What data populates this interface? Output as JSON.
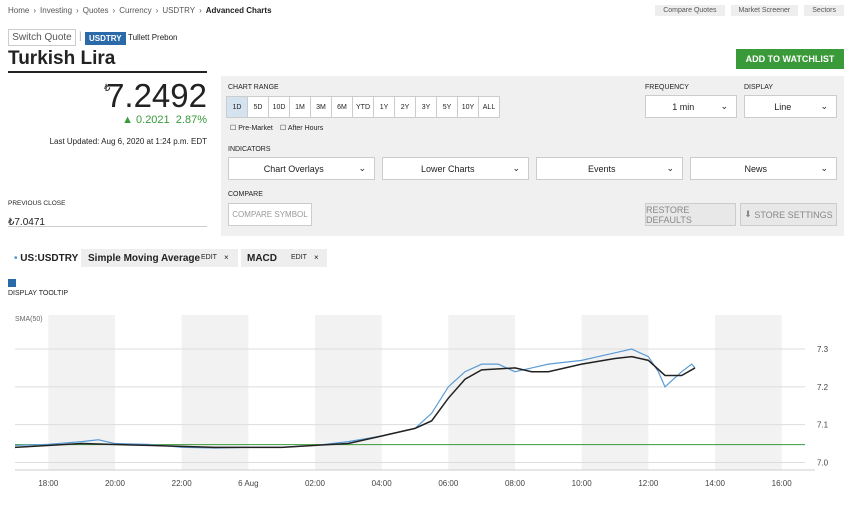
{
  "header": {
    "breadcrumb": [
      "Home",
      "Investing",
      "Quotes",
      "Currency",
      "USDTRY",
      "Advanced Charts"
    ],
    "nav": [
      "Compare Quotes",
      "Market Screener",
      "Sectors"
    ],
    "switch_quote": "Switch Quote",
    "ticker": "USDTRY",
    "source": "Tullett Prebon",
    "name": "Turkish Lira",
    "watchlist_button": "ADD TO WATCHLIST"
  },
  "quote": {
    "currency_symbol": "₺",
    "price": "7.2492",
    "change": "0.2021",
    "change_percent": "2.87%",
    "last_updated": "Last Updated: Aug 6, 2020 at 1:24 p.m. EDT",
    "previous_close_label": "PREVIOUS CLOSE",
    "previous_close": "₺7.0471"
  },
  "controls": {
    "chart_range_label": "CHART RANGE",
    "ranges": [
      "1D",
      "5D",
      "10D",
      "1M",
      "3M",
      "6M",
      "YTD",
      "1Y",
      "2Y",
      "3Y",
      "5Y",
      "10Y",
      "ALL"
    ],
    "pre_market": "Pre-Market",
    "after_hours": "After Hours",
    "frequency_label": "FREQUENCY",
    "frequency": "1 min",
    "display_label": "DISPLAY",
    "display": "Line",
    "indicators_label": "INDICATORS",
    "indicator_selects": [
      "Chart Overlays",
      "Lower Charts",
      "Events",
      "News"
    ],
    "compare_label": "COMPARE",
    "compare_placeholder": "COMPARE SYMBOL",
    "restore_defaults": "RESTORE DEFAULTS",
    "store_settings": "STORE SETTINGS"
  },
  "legend": {
    "symbol": "US:USDTRY",
    "indicators": [
      {
        "name": "Simple Moving Average",
        "edit": "EDIT",
        "remove": "×"
      },
      {
        "name": "MACD",
        "edit": "EDIT",
        "remove": "×"
      }
    ],
    "display_tooltip": "DISPLAY TOOLTIP"
  },
  "chart": {
    "type": "line",
    "indicator_label": "SMA(50)",
    "xlim": [
      -1,
      23
    ],
    "ylim": [
      6.98,
      7.39
    ],
    "xticks": [
      {
        "value": 0,
        "label": "18:00"
      },
      {
        "value": 2,
        "label": "20:00"
      },
      {
        "value": 4,
        "label": "22:00"
      },
      {
        "value": 6,
        "label": "6 Aug"
      },
      {
        "value": 8,
        "label": "02:00"
      },
      {
        "value": 10,
        "label": "04:00"
      },
      {
        "value": 12,
        "label": "06:00"
      },
      {
        "value": 14,
        "label": "08:00"
      },
      {
        "value": 16,
        "label": "10:00"
      },
      {
        "value": 18,
        "label": "12:00"
      },
      {
        "value": 20,
        "label": "14:00"
      },
      {
        "value": 22,
        "label": "16:00"
      }
    ],
    "yticks": [
      7.3,
      7.2,
      7.1,
      {
        "value": 7,
        "label": "7.0"
      }
    ],
    "reference_line": {
      "value": 7.0471,
      "color": "#3a9a3a"
    },
    "series": [
      {
        "color": "#5b9bd5",
        "x": [
          -1,
          0,
          1,
          1.5,
          2,
          3,
          4,
          5,
          6,
          7,
          8,
          9,
          10,
          10.5,
          11,
          11.5,
          12,
          12.5,
          13,
          13.5,
          14,
          14.5,
          15,
          16,
          16.5,
          17,
          17.5,
          18,
          18.3,
          18.5,
          19,
          19.3,
          19.4
        ],
        "values": [
          7.045,
          7.048,
          7.055,
          7.06,
          7.05,
          7.048,
          7.04,
          7.038,
          7.04,
          7.04,
          7.045,
          7.055,
          7.07,
          7.08,
          7.09,
          7.13,
          7.2,
          7.24,
          7.26,
          7.26,
          7.24,
          7.25,
          7.26,
          7.27,
          7.28,
          7.29,
          7.3,
          7.28,
          7.24,
          7.2,
          7.24,
          7.26,
          7.25
        ]
      },
      {
        "color": "#222222",
        "x": [
          -1,
          1,
          3,
          5,
          7,
          8,
          9,
          10,
          11,
          11.5,
          12,
          12.5,
          13,
          14,
          14.5,
          15,
          16,
          17,
          17.5,
          18,
          18.5,
          19,
          19.4
        ],
        "values": [
          7.04,
          7.05,
          7.045,
          7.04,
          7.04,
          7.045,
          7.05,
          7.07,
          7.09,
          7.11,
          7.17,
          7.22,
          7.245,
          7.25,
          7.24,
          7.24,
          7.26,
          7.275,
          7.28,
          7.27,
          7.23,
          7.23,
          7.25
        ]
      }
    ]
  }
}
